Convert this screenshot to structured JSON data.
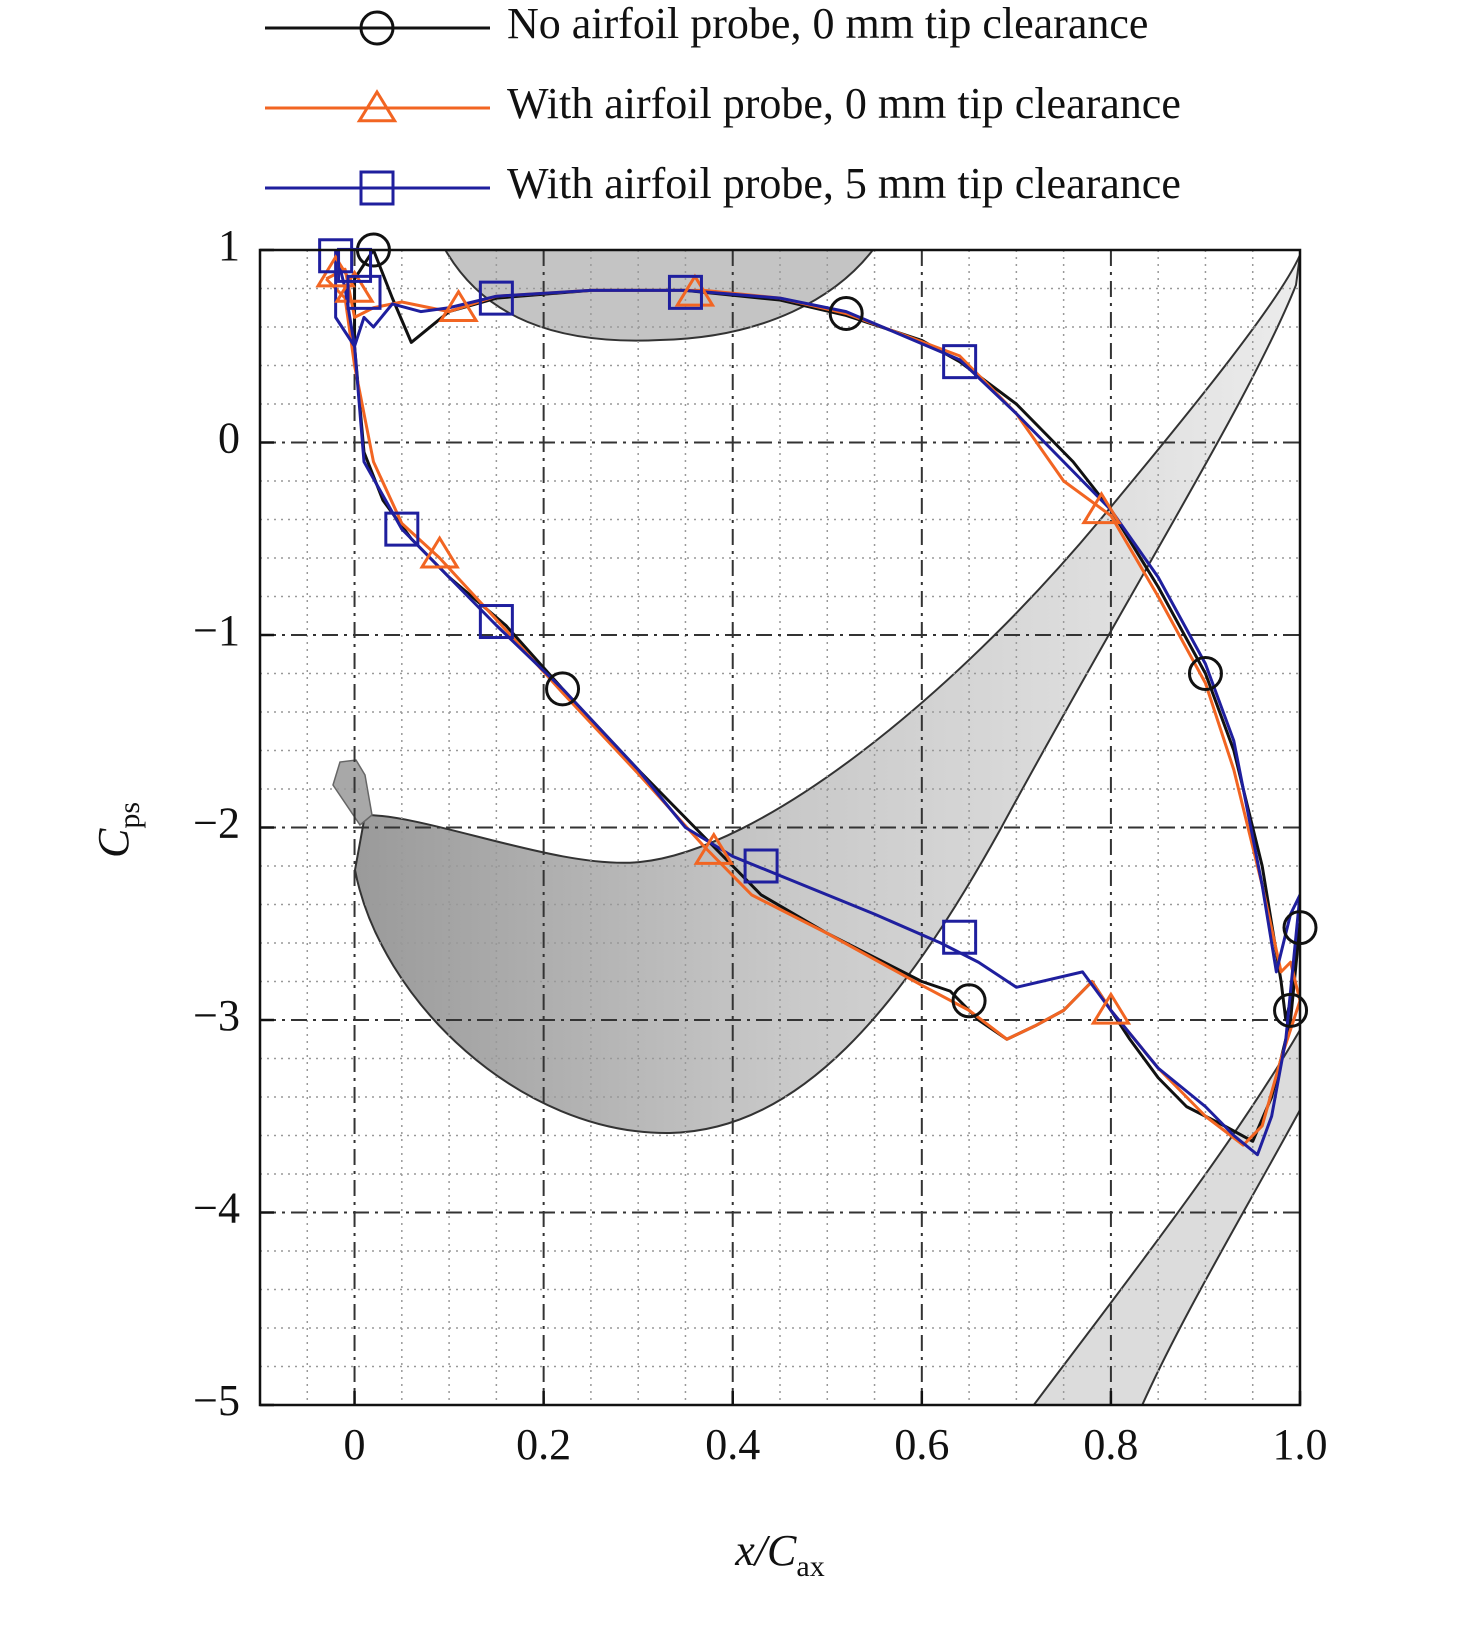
{
  "chart_data": {
    "type": "line",
    "xlabel": {
      "text": "x/C",
      "sub": "ax"
    },
    "ylabel": {
      "text": "C",
      "sub": "ps"
    },
    "xlim": [
      -0.1,
      1.0
    ],
    "ylim": [
      -5,
      1
    ],
    "xticks": [
      0,
      0.2,
      0.4,
      0.6,
      0.8,
      {
        "value": 1,
        "label": "1.0"
      }
    ],
    "yticks": [
      1,
      0,
      {
        "value": -1,
        "label": "−1"
      },
      {
        "value": -2,
        "label": "−2"
      },
      {
        "value": -3,
        "label": "−3"
      },
      {
        "value": -4,
        "label": "−4"
      },
      {
        "value": -5,
        "label": "−5"
      }
    ],
    "xticks_minor": [
      -0.05,
      0.05,
      0.1,
      0.15,
      0.25,
      0.3,
      0.35,
      0.45,
      0.5,
      0.55,
      0.65,
      0.7,
      0.75,
      0.85,
      0.9,
      0.95
    ],
    "yticks_minor": [
      0.8,
      0.6,
      0.4,
      0.2,
      -0.2,
      -0.4,
      -0.6,
      -0.8,
      -1.2,
      -1.4,
      -1.6,
      -1.8,
      -2.2,
      -2.4,
      -2.6,
      -2.8,
      -3.2,
      -3.4,
      -3.6,
      -3.8,
      -4.2,
      -4.4,
      -4.6,
      -4.8
    ],
    "grid": true,
    "legend": "top",
    "series": [
      {
        "name": "No airfoil probe, 0 mm tip clearance",
        "color": "#111111",
        "marker": "circle",
        "x": [
          0.02,
          0.04,
          0.06,
          0.1,
          0.15,
          0.25,
          0.35,
          0.45,
          0.52,
          0.6,
          0.64,
          0.7,
          0.76,
          0.8,
          0.85,
          0.9,
          0.93,
          0.96,
          0.98,
          0.985,
          0.99,
          1.0,
          0.99,
          0.97,
          0.95,
          0.92,
          0.88,
          0.85,
          0.82,
          0.8,
          0.78,
          0.75,
          0.72,
          0.69,
          0.66,
          0.63,
          0.6,
          0.5,
          0.43,
          0.38,
          0.3,
          0.22,
          0.16,
          0.1,
          0.06,
          0.03,
          0.01,
          0.0,
          0.0,
          0.02
        ],
        "values": [
          1.0,
          0.75,
          0.52,
          0.68,
          0.75,
          0.79,
          0.79,
          0.74,
          0.66,
          0.53,
          0.42,
          0.2,
          -0.1,
          -0.35,
          -0.75,
          -1.2,
          -1.6,
          -2.2,
          -2.8,
          -3.0,
          -2.9,
          -2.5,
          -3.0,
          -3.4,
          -3.63,
          -3.55,
          -3.45,
          -3.3,
          -3.1,
          -2.95,
          -2.8,
          -2.95,
          -3.03,
          -3.1,
          -3.0,
          -2.85,
          -2.8,
          -2.55,
          -2.35,
          -2.1,
          -1.7,
          -1.28,
          -0.95,
          -0.7,
          -0.5,
          -0.3,
          -0.05,
          0.5,
          0.85,
          1.0
        ],
        "marker_x": [
          0.02,
          0.52,
          0.22,
          0.9,
          0.65,
          1.0,
          0.99
        ],
        "marker_values": [
          1.0,
          0.67,
          -1.28,
          -1.2,
          -2.9,
          -2.52,
          -2.95
        ]
      },
      {
        "name": "With airfoil probe, 0 mm tip clearance",
        "color": "#f26522",
        "marker": "triangle",
        "x": [
          -0.03,
          -0.01,
          0.0,
          0.02,
          0.05,
          0.1,
          0.15,
          0.25,
          0.37,
          0.45,
          0.52,
          0.64,
          0.7,
          0.75,
          0.8,
          0.85,
          0.9,
          0.93,
          0.96,
          0.98,
          0.99,
          1.0,
          0.98,
          0.96,
          0.94,
          0.9,
          0.85,
          0.8,
          0.78,
          0.75,
          0.72,
          0.69,
          0.65,
          0.6,
          0.5,
          0.42,
          0.37,
          0.3,
          0.22,
          0.15,
          0.09,
          0.05,
          0.02,
          0.0,
          -0.01,
          -0.03
        ],
        "values": [
          0.85,
          0.9,
          0.65,
          0.7,
          0.73,
          0.68,
          0.76,
          0.79,
          0.79,
          0.75,
          0.67,
          0.45,
          0.15,
          -0.2,
          -0.38,
          -0.8,
          -1.25,
          -1.7,
          -2.3,
          -2.75,
          -2.7,
          -2.9,
          -3.2,
          -3.55,
          -3.65,
          -3.5,
          -3.25,
          -2.95,
          -2.8,
          -2.95,
          -3.03,
          -3.1,
          -2.95,
          -2.82,
          -2.55,
          -2.35,
          -2.1,
          -1.72,
          -1.3,
          -0.92,
          -0.6,
          -0.42,
          -0.1,
          0.4,
          0.75,
          0.85
        ],
        "marker_x": [
          -0.02,
          0.0,
          0.11,
          0.36,
          0.79,
          0.09,
          0.38,
          0.8
        ],
        "marker_values": [
          0.88,
          0.8,
          0.7,
          0.78,
          -0.35,
          -0.58,
          -2.12,
          -2.95
        ]
      },
      {
        "name": "With airfoil probe, 5 mm tip clearance",
        "color": "#1f1f9e",
        "marker": "square",
        "x": [
          -0.02,
          -0.02,
          0.0,
          0.01,
          0.02,
          0.04,
          0.07,
          0.1,
          0.15,
          0.25,
          0.35,
          0.45,
          0.52,
          0.64,
          0.7,
          0.76,
          0.8,
          0.85,
          0.9,
          0.93,
          0.96,
          0.975,
          0.99,
          1.0,
          0.985,
          0.97,
          0.955,
          0.93,
          0.9,
          0.85,
          0.8,
          0.77,
          0.7,
          0.66,
          0.62,
          0.55,
          0.45,
          0.4,
          0.35,
          0.3,
          0.22,
          0.15,
          0.1,
          0.05,
          0.01,
          0.0,
          -0.01,
          -0.02
        ],
        "values": [
          1.0,
          0.65,
          0.5,
          0.65,
          0.6,
          0.72,
          0.68,
          0.7,
          0.76,
          0.79,
          0.79,
          0.75,
          0.68,
          0.43,
          0.15,
          -0.15,
          -0.35,
          -0.7,
          -1.15,
          -1.55,
          -2.3,
          -2.75,
          -2.45,
          -2.35,
          -3.1,
          -3.5,
          -3.7,
          -3.6,
          -3.45,
          -3.25,
          -2.95,
          -2.75,
          -2.83,
          -2.7,
          -2.6,
          -2.45,
          -2.25,
          -2.15,
          -2.0,
          -1.7,
          -1.28,
          -0.95,
          -0.7,
          -0.45,
          -0.1,
          0.5,
          0.8,
          1.0
        ],
        "marker_x": [
          -0.02,
          0.0,
          0.01,
          0.15,
          0.35,
          0.64,
          0.05,
          0.15,
          0.43,
          0.64
        ],
        "marker_values": [
          0.97,
          0.92,
          0.78,
          0.75,
          0.78,
          0.42,
          -0.45,
          -0.93,
          -2.2,
          -2.57
        ]
      }
    ]
  }
}
